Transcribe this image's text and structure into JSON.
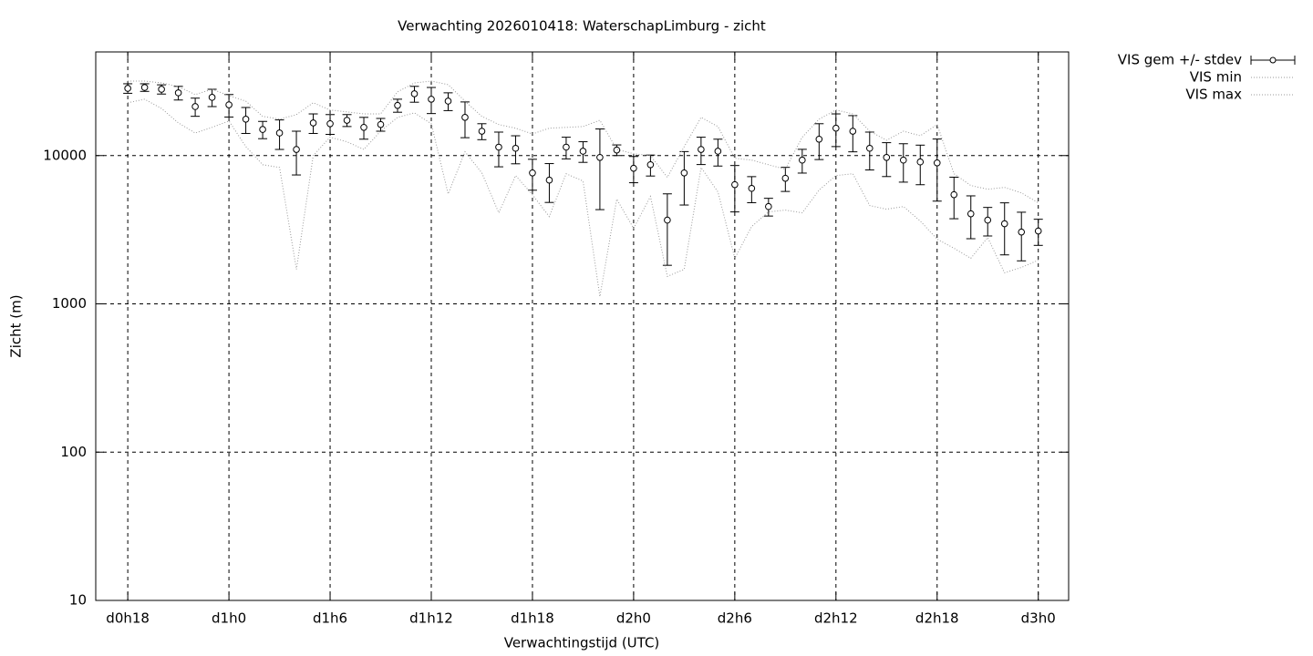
{
  "chart_data": {
    "type": "errorbar",
    "title": "Verwachting 2026010418: WaterschapLimburg - zicht",
    "x_label": "Verwachtingstijd (UTC)",
    "y_label": "Zicht (m)",
    "log_y": true,
    "grid": true,
    "legend": "outside-top-right",
    "xlim": [
      -1.9,
      55.8
    ],
    "xticks": [
      {
        "value": 0,
        "label": "d0h18"
      },
      {
        "value": 6,
        "label": "d1h0"
      },
      {
        "value": 12,
        "label": "d1h6"
      },
      {
        "value": 18,
        "label": "d1h12"
      },
      {
        "value": 24,
        "label": "d1h18"
      },
      {
        "value": 30,
        "label": "d2h0"
      },
      {
        "value": 36,
        "label": "d2h6"
      },
      {
        "value": 42,
        "label": "d2h12"
      },
      {
        "value": 48,
        "label": "d2h18"
      },
      {
        "value": 54,
        "label": "d3h0"
      }
    ],
    "ylim": [
      10,
      50000
    ],
    "yticks": [
      10,
      100,
      1000,
      10000
    ],
    "x": [
      0,
      1,
      2,
      3,
      4,
      5,
      6,
      7,
      8,
      9,
      10,
      11,
      12,
      13,
      14,
      15,
      16,
      17,
      18,
      19,
      20,
      21,
      22,
      23,
      24,
      25,
      26,
      27,
      28,
      29,
      30,
      31,
      32,
      33,
      34,
      35,
      36,
      37,
      38,
      39,
      40,
      41,
      42,
      43,
      44,
      45,
      46,
      47,
      48,
      49,
      50,
      51,
      52,
      53,
      54
    ],
    "series": [
      {
        "name": "VIS gem +/- stdev",
        "color": "#000000",
        "values": [
          28400,
          28800,
          28000,
          26500,
          21400,
          24700,
          22000,
          17600,
          15000,
          14200,
          11000,
          16600,
          16400,
          17300,
          15500,
          16200,
          21800,
          26100,
          24000,
          23300,
          18100,
          14600,
          11400,
          11200,
          7640,
          6830,
          11400,
          10700,
          9720,
          10900,
          8210,
          8680,
          3670,
          7640,
          11000,
          10700,
          6370,
          6010,
          4530,
          7030,
          9320,
          12900,
          15300,
          14600,
          11200,
          9720,
          9320,
          9060,
          8930,
          5450,
          4050,
          3670,
          3470,
          3050,
          3100
        ],
        "errors": [
          2100,
          1700,
          2000,
          2800,
          3000,
          3300,
          3800,
          3500,
          2000,
          3200,
          3600,
          2500,
          2500,
          1600,
          2600,
          1600,
          2200,
          3200,
          4800,
          3200,
          4900,
          1800,
          3000,
          2400,
          1800,
          2000,
          1900,
          1700,
          5400,
          900,
          1650,
          1400,
          1850,
          3000,
          2300,
          2200,
          2200,
          1200,
          620,
          1300,
          1700,
          3500,
          3800,
          4000,
          3200,
          2500,
          2700,
          2700,
          4000,
          1700,
          1300,
          800,
          1330,
          1100,
          620
        ]
      },
      {
        "name": "VIS min",
        "color": "#999999",
        "values": [
          22700,
          24000,
          20800,
          16600,
          14200,
          15500,
          17100,
          11500,
          8680,
          8320,
          1710,
          10000,
          13300,
          12400,
          11000,
          14600,
          18100,
          19400,
          16400,
          5520,
          10600,
          7640,
          4110,
          7330,
          5450,
          3880,
          7540,
          6730,
          1120,
          5080,
          3230,
          5300,
          1530,
          1710,
          8320,
          5680,
          2030,
          3320,
          4170,
          4290,
          4110,
          5850,
          7330,
          7540,
          4600,
          4350,
          4530,
          3620,
          2730,
          2370,
          2030,
          2800,
          1620,
          1760,
          1970
        ]
      },
      {
        "name": "VIS max",
        "color": "#999999",
        "values": [
          31800,
          31800,
          30900,
          29200,
          25800,
          28000,
          25400,
          23300,
          18400,
          17600,
          18900,
          22700,
          20300,
          19700,
          19100,
          19100,
          26900,
          30900,
          31800,
          30100,
          23300,
          18400,
          16200,
          15300,
          14000,
          15300,
          15500,
          15700,
          17300,
          11000,
          10300,
          10000,
          7130,
          11500,
          18100,
          15700,
          9590,
          9320,
          8680,
          8090,
          13300,
          17600,
          20300,
          19100,
          14600,
          12700,
          14600,
          13600,
          16200,
          7540,
          6280,
          5930,
          6100,
          5600,
          4800
        ]
      }
    ]
  }
}
